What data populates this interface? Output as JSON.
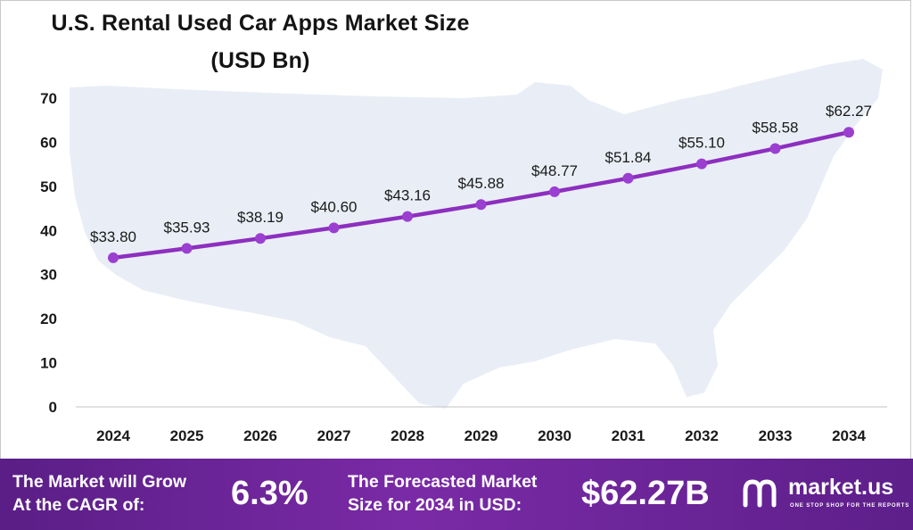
{
  "title": {
    "line1": "U.S. Rental Used Car Apps Market Size",
    "line2": "(USD Bn)"
  },
  "colors": {
    "line": "#8d2fbf",
    "marker": "#9b3fd0",
    "grid_axis": "#cfcfcf",
    "map": "#e9eef6",
    "footer": "#6a2496"
  },
  "chart_data": {
    "type": "line",
    "title": "U.S. Rental Used Car Apps Market Size (USD Bn)",
    "xlabel": "",
    "ylabel": "",
    "categories": [
      "2024",
      "2025",
      "2026",
      "2027",
      "2028",
      "2029",
      "2030",
      "2031",
      "2032",
      "2033",
      "2034"
    ],
    "series": [
      {
        "name": "Market Size (USD Bn)",
        "values": [
          33.8,
          35.93,
          38.19,
          40.6,
          43.16,
          45.88,
          48.77,
          51.84,
          55.1,
          58.58,
          62.27
        ]
      }
    ],
    "data_labels": [
      "$33.80",
      "$35.93",
      "$38.19",
      "$40.60",
      "$43.16",
      "$45.88",
      "$48.77",
      "$51.84",
      "$55.10",
      "$58.58",
      "$62.27"
    ],
    "ylim": [
      0,
      70
    ],
    "yticks": [
      "0",
      "10",
      "20",
      "30",
      "40",
      "50",
      "60",
      "70"
    ],
    "grid": false,
    "legend": "none"
  },
  "footer": {
    "cagr_label_line1": "The Market will Grow",
    "cagr_label_line2": "At the CAGR of:",
    "cagr_value": "6.3%",
    "forecast_label_line1": "The Forecasted Market",
    "forecast_label_line2": "Size for 2034 in USD:",
    "forecast_value": "$62.27B",
    "logo_name": "market.us",
    "logo_tagline": "ONE STOP SHOP FOR THE REPORTS"
  }
}
